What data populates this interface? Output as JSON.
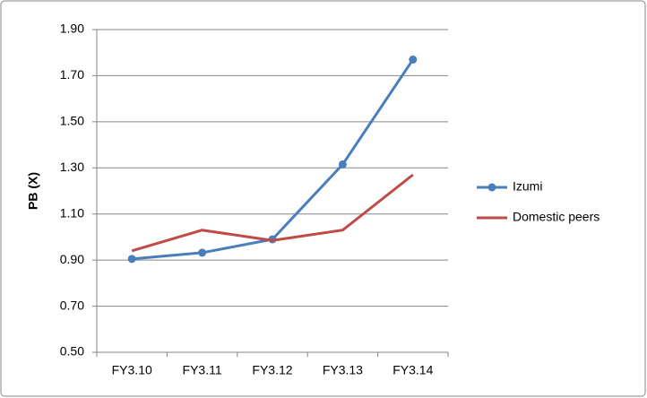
{
  "chart_data": {
    "type": "line",
    "y_label": "PB (X)",
    "categories": [
      "FY3.10",
      "FY3.11",
      "FY3.12",
      "FY3.13",
      "FY3.14"
    ],
    "series": [
      {
        "name": "Izumi",
        "color": "#4a7ebb",
        "markers": true,
        "values": [
          0.905,
          0.932,
          0.99,
          1.315,
          1.77
        ]
      },
      {
        "name": "Domestic peers",
        "color": "#be4b48",
        "markers": false,
        "values": [
          0.94,
          1.03,
          0.985,
          1.03,
          1.27
        ]
      }
    ],
    "ylim": [
      0.5,
      1.9
    ],
    "yticks": [
      {
        "value": 0.5,
        "label": "0.50"
      },
      {
        "value": 0.7,
        "label": "0.70"
      },
      {
        "value": 0.9,
        "label": "0.90"
      },
      {
        "value": 1.1,
        "label": "1.10"
      },
      {
        "value": 1.3,
        "label": "1.30"
      },
      {
        "value": 1.5,
        "label": "1.50"
      },
      {
        "value": 1.7,
        "label": "1.70"
      },
      {
        "value": 1.9,
        "label": "1.90"
      }
    ],
    "grid": true,
    "legend": "right"
  }
}
